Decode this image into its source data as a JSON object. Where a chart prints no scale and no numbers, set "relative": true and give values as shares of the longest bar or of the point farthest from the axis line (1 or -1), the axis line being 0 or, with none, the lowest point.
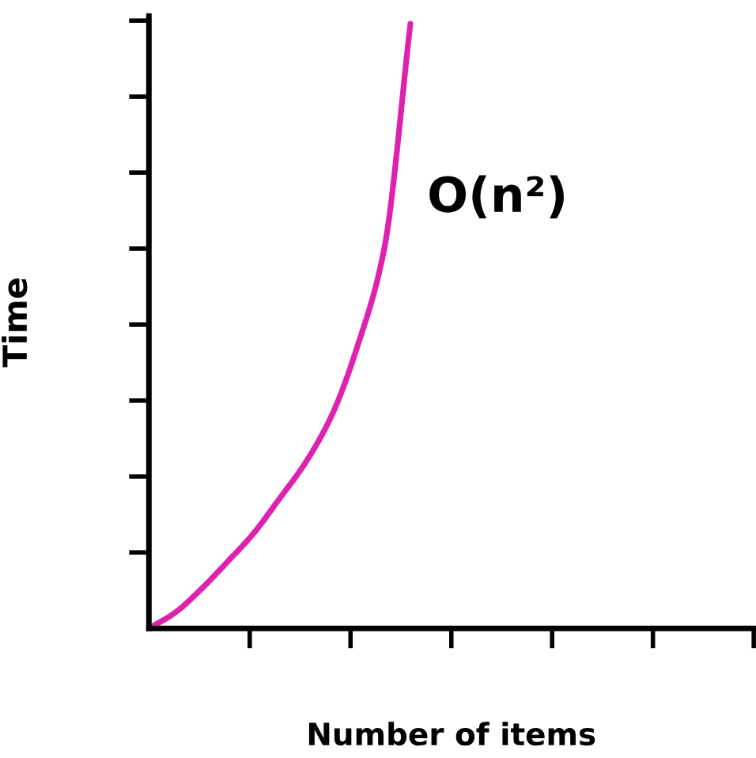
{
  "chart_data": {
    "type": "line",
    "relative": true,
    "xlabel": "Number of items",
    "ylabel": "Time",
    "annotations": [
      "O(n²)"
    ],
    "categories": [
      null,
      null,
      null,
      null,
      null,
      null,
      null,
      null,
      null,
      null,
      null
    ],
    "series": [
      {
        "color": "#dd22b0",
        "values": [
          0,
          0.026,
          0.065,
          0.11,
          0.157,
          0.215,
          0.275,
          0.353,
          0.47,
          0.628,
          1.0
        ]
      }
    ],
    "grid": false,
    "legend": false,
    "marker": "none",
    "line_style": "solid"
  }
}
